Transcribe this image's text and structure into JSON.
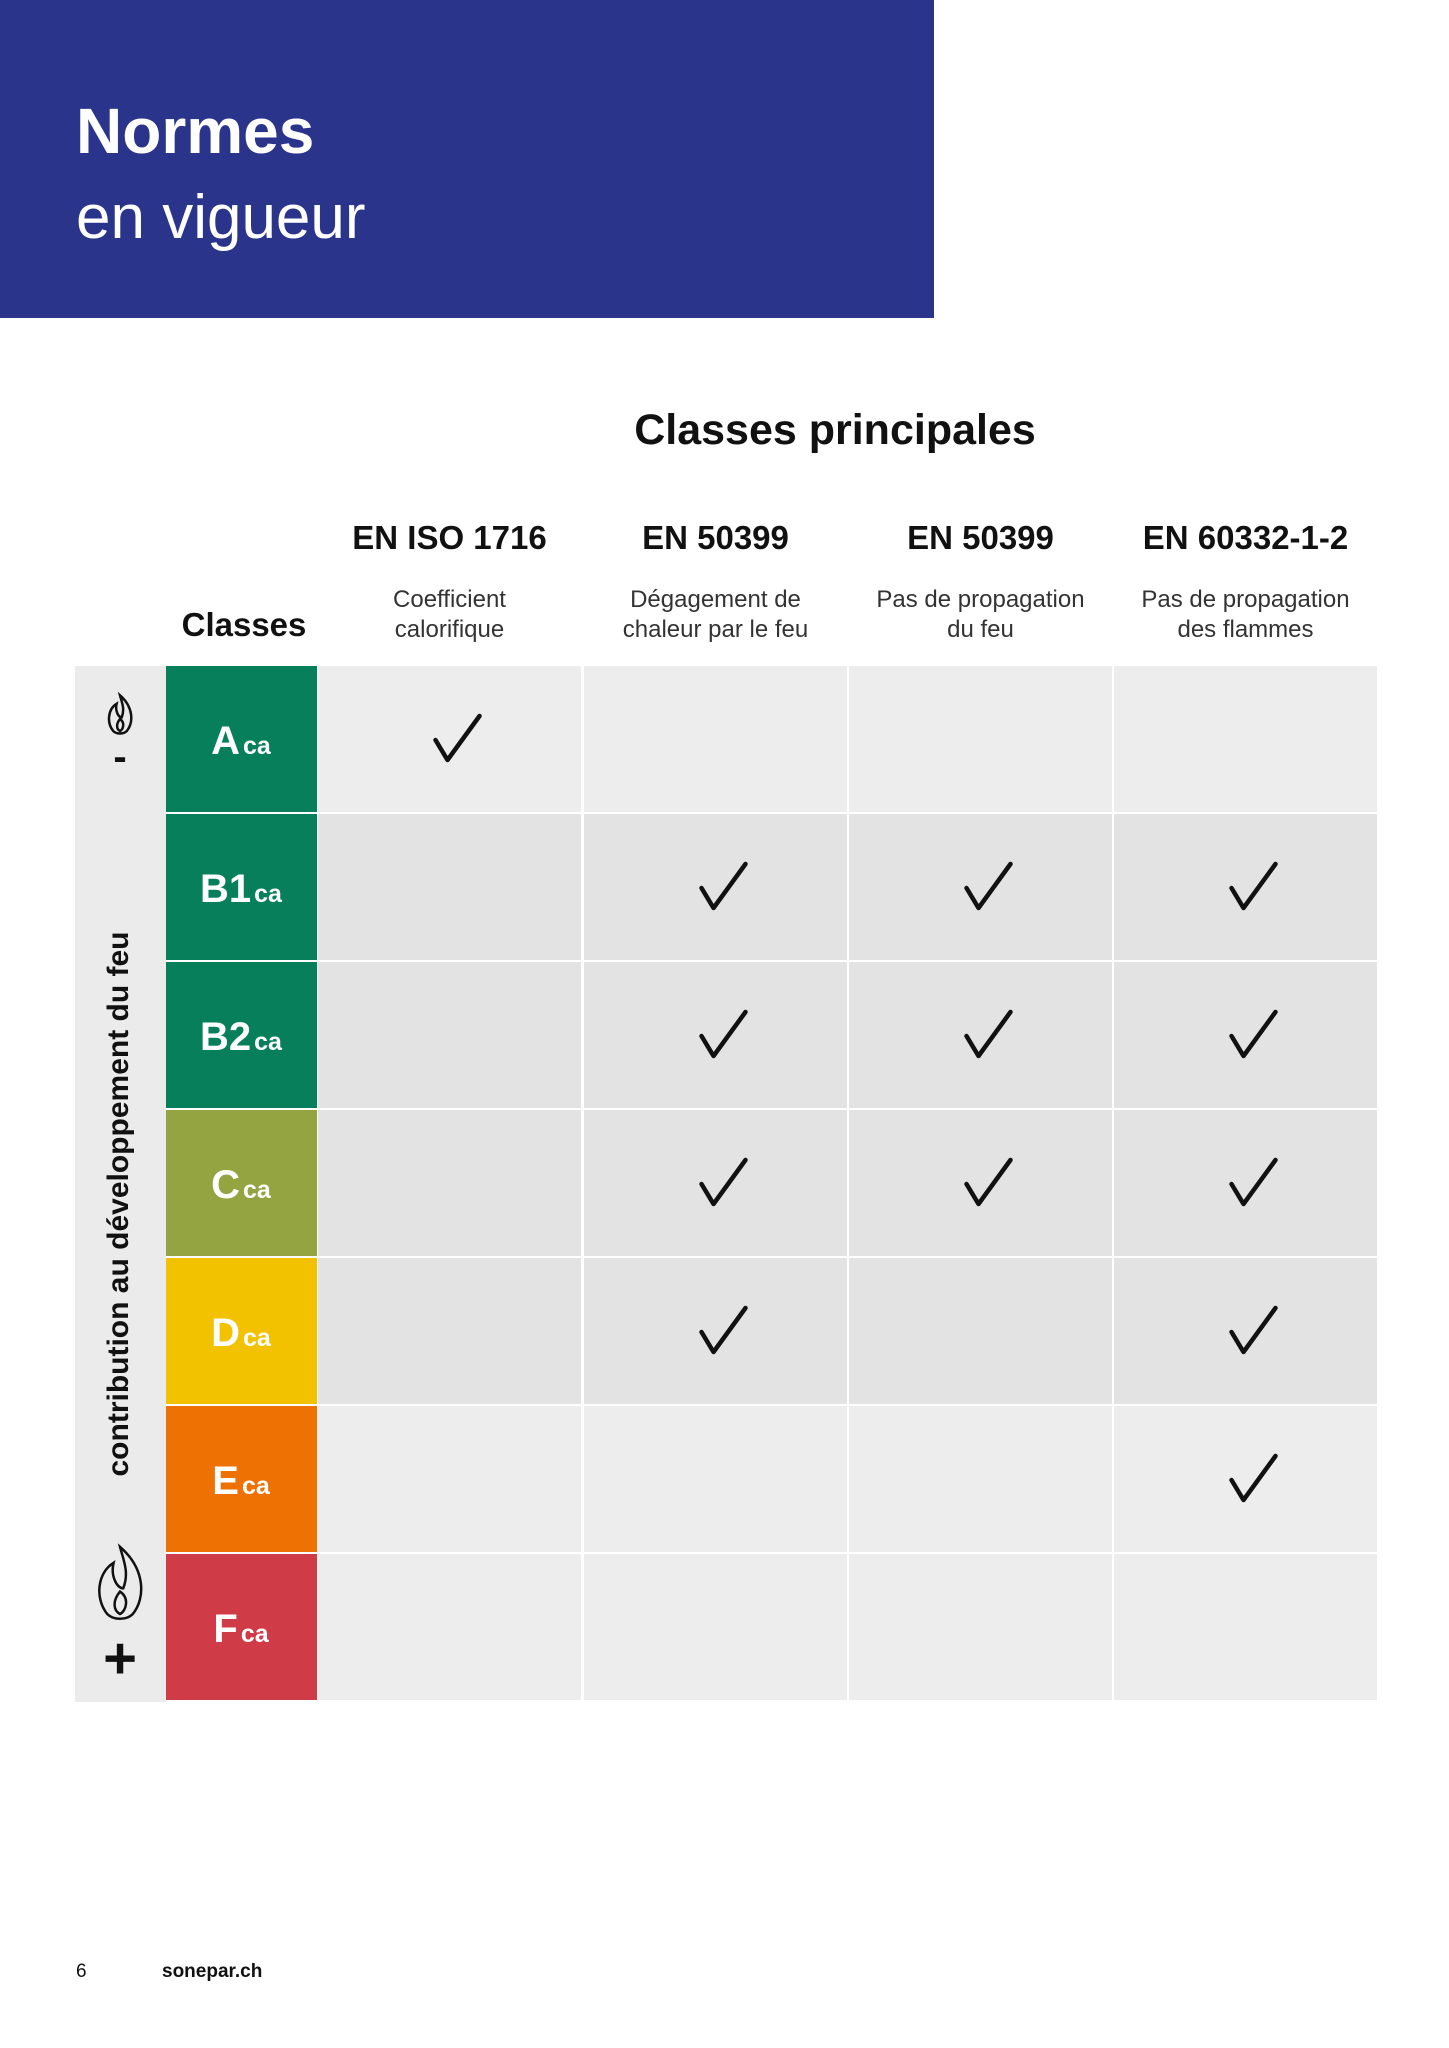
{
  "header": {
    "title": "Normes",
    "subtitle": "en vigueur"
  },
  "table": {
    "title": "Classes principales",
    "row_header": "Classes",
    "side_label": "contribution au développement du feu",
    "low_sign": "-",
    "high_sign": "+",
    "columns": [
      {
        "standard": "EN ISO 1716",
        "lines": [
          "Coefficient",
          "calorifique"
        ]
      },
      {
        "standard": "EN 50399",
        "lines": [
          "Dégagement de",
          "chaleur par le feu"
        ]
      },
      {
        "standard": "EN 50399",
        "lines": [
          "Pas de propagation",
          "du feu"
        ]
      },
      {
        "standard": "EN 60332-1-2",
        "lines": [
          "Pas de propagation",
          "des flammes"
        ]
      }
    ],
    "rows": [
      {
        "letter": "A",
        "sub": "ca",
        "color": "#077f5b",
        "checks": [
          true,
          false,
          false,
          false
        ]
      },
      {
        "letter": "B1",
        "sub": "ca",
        "color": "#077f5b",
        "checks": [
          false,
          true,
          true,
          true
        ]
      },
      {
        "letter": "B2",
        "sub": "ca",
        "color": "#077f5b",
        "checks": [
          false,
          true,
          true,
          true
        ]
      },
      {
        "letter": "C",
        "sub": "ca",
        "color": "#94a441",
        "checks": [
          false,
          true,
          true,
          true
        ]
      },
      {
        "letter": "D",
        "sub": "ca",
        "color": "#f2c200",
        "checks": [
          false,
          true,
          false,
          true
        ]
      },
      {
        "letter": "E",
        "sub": "ca",
        "color": "#ee7203",
        "checks": [
          false,
          false,
          false,
          true
        ]
      },
      {
        "letter": "F",
        "sub": "ca",
        "color": "#cf3b47",
        "checks": [
          false,
          false,
          false,
          false
        ]
      }
    ]
  },
  "footer": {
    "page": "6",
    "site": "sonepar.ch"
  }
}
